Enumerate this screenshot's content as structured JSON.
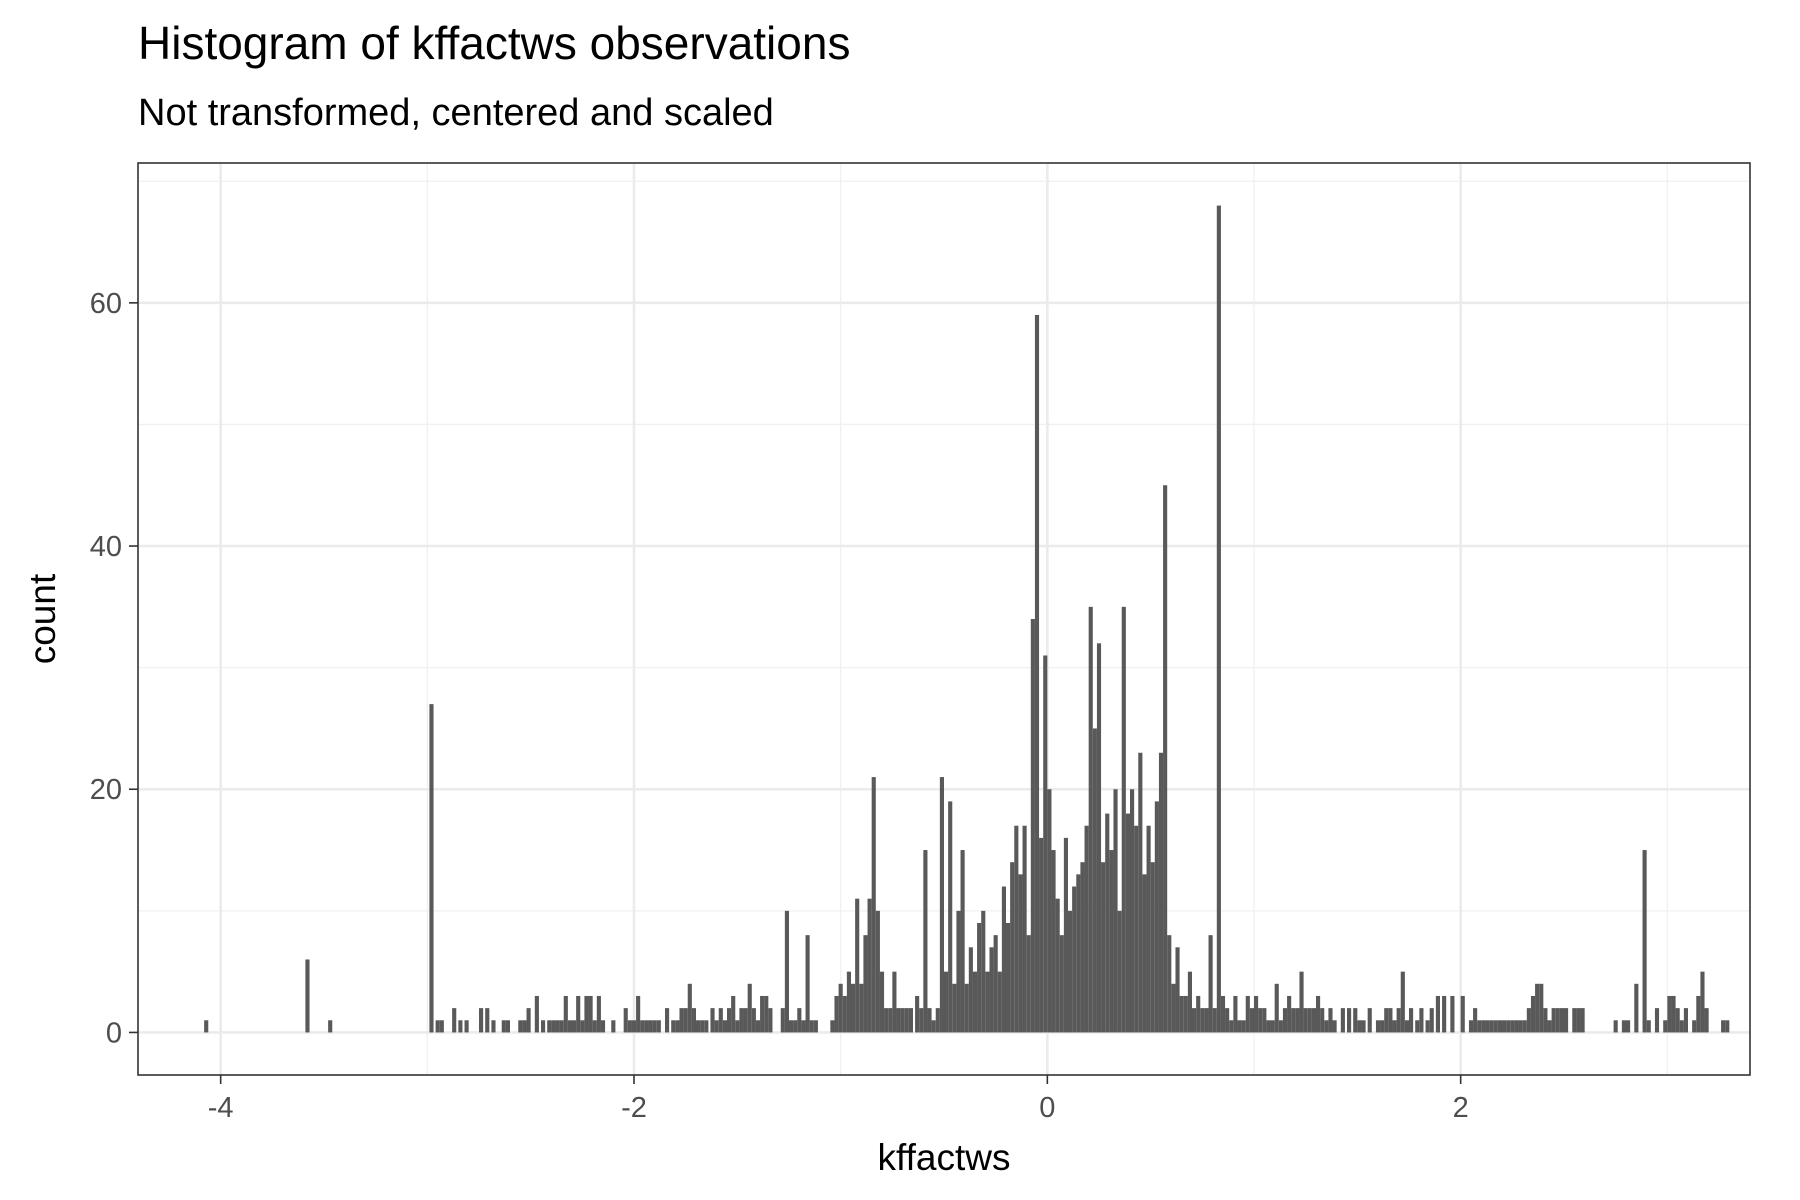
{
  "chart_data": {
    "type": "bar",
    "title": "Histogram of kffactws observations",
    "subtitle": "Not transformed, centered and scaled",
    "xlabel": "kffactws",
    "ylabel": "count",
    "xlim": [
      -4.4,
      3.4
    ],
    "ylim": [
      -3.5,
      71.5
    ],
    "x_ticks": [
      -4,
      -2,
      0,
      2
    ],
    "x_tick_labels": [
      "-4",
      "-2",
      "0",
      "2"
    ],
    "y_ticks": [
      0,
      20,
      40,
      60
    ],
    "y_tick_labels": [
      "0",
      "20",
      "40",
      "60"
    ],
    "grid": true,
    "bar_color": "#595959",
    "bins": [
      [
        -4.07,
        1
      ],
      [
        -3.58,
        6
      ],
      [
        -3.47,
        1
      ],
      [
        -2.98,
        27
      ],
      [
        -2.95,
        1
      ],
      [
        -2.93,
        1
      ],
      [
        -2.87,
        2
      ],
      [
        -2.84,
        1
      ],
      [
        -2.81,
        1
      ],
      [
        -2.74,
        2
      ],
      [
        -2.71,
        2
      ],
      [
        -2.68,
        1
      ],
      [
        -2.63,
        1
      ],
      [
        -2.61,
        1
      ],
      [
        -2.55,
        1
      ],
      [
        -2.53,
        1
      ],
      [
        -2.51,
        2
      ],
      [
        -2.47,
        3
      ],
      [
        -2.44,
        1
      ],
      [
        -2.41,
        1
      ],
      [
        -2.39,
        1
      ],
      [
        -2.37,
        1
      ],
      [
        -2.35,
        1
      ],
      [
        -2.33,
        3
      ],
      [
        -2.31,
        1
      ],
      [
        -2.29,
        1
      ],
      [
        -2.27,
        3
      ],
      [
        -2.25,
        1
      ],
      [
        -2.23,
        3
      ],
      [
        -2.21,
        3
      ],
      [
        -2.19,
        1
      ],
      [
        -2.17,
        3
      ],
      [
        -2.15,
        1
      ],
      [
        -2.1,
        1
      ],
      [
        -2.04,
        2
      ],
      [
        -2.02,
        1
      ],
      [
        -2.0,
        1
      ],
      [
        -1.98,
        3
      ],
      [
        -1.96,
        1
      ],
      [
        -1.94,
        1
      ],
      [
        -1.92,
        1
      ],
      [
        -1.9,
        1
      ],
      [
        -1.88,
        1
      ],
      [
        -1.84,
        2
      ],
      [
        -1.81,
        1
      ],
      [
        -1.79,
        1
      ],
      [
        -1.77,
        2
      ],
      [
        -1.75,
        2
      ],
      [
        -1.73,
        4
      ],
      [
        -1.71,
        2
      ],
      [
        -1.69,
        1
      ],
      [
        -1.67,
        1
      ],
      [
        -1.65,
        1
      ],
      [
        -1.62,
        2
      ],
      [
        -1.6,
        1
      ],
      [
        -1.58,
        2
      ],
      [
        -1.56,
        1
      ],
      [
        -1.54,
        2
      ],
      [
        -1.52,
        3
      ],
      [
        -1.5,
        1
      ],
      [
        -1.48,
        2
      ],
      [
        -1.46,
        2
      ],
      [
        -1.44,
        4
      ],
      [
        -1.42,
        2
      ],
      [
        -1.4,
        1
      ],
      [
        -1.38,
        3
      ],
      [
        -1.36,
        3
      ],
      [
        -1.34,
        2
      ],
      [
        -1.28,
        2
      ],
      [
        -1.26,
        10
      ],
      [
        -1.24,
        1
      ],
      [
        -1.22,
        1
      ],
      [
        -1.2,
        2
      ],
      [
        -1.18,
        1
      ],
      [
        -1.16,
        8
      ],
      [
        -1.14,
        1
      ],
      [
        -1.12,
        1
      ],
      [
        -1.04,
        1
      ],
      [
        -1.02,
        3
      ],
      [
        -1.0,
        4
      ],
      [
        -0.98,
        3
      ],
      [
        -0.96,
        5
      ],
      [
        -0.94,
        4
      ],
      [
        -0.92,
        11
      ],
      [
        -0.9,
        4
      ],
      [
        -0.88,
        8
      ],
      [
        -0.86,
        11
      ],
      [
        -0.84,
        21
      ],
      [
        -0.82,
        10
      ],
      [
        -0.8,
        5
      ],
      [
        -0.78,
        2
      ],
      [
        -0.76,
        2
      ],
      [
        -0.74,
        5
      ],
      [
        -0.72,
        2
      ],
      [
        -0.7,
        2
      ],
      [
        -0.68,
        2
      ],
      [
        -0.66,
        2
      ],
      [
        -0.63,
        3
      ],
      [
        -0.61,
        2
      ],
      [
        -0.59,
        15
      ],
      [
        -0.57,
        2
      ],
      [
        -0.55,
        1
      ],
      [
        -0.53,
        2
      ],
      [
        -0.51,
        21
      ],
      [
        -0.49,
        5
      ],
      [
        -0.47,
        19
      ],
      [
        -0.45,
        4
      ],
      [
        -0.43,
        10
      ],
      [
        -0.41,
        15
      ],
      [
        -0.39,
        4
      ],
      [
        -0.37,
        7
      ],
      [
        -0.35,
        5
      ],
      [
        -0.33,
        9
      ],
      [
        -0.31,
        10
      ],
      [
        -0.29,
        5
      ],
      [
        -0.27,
        7
      ],
      [
        -0.25,
        8
      ],
      [
        -0.23,
        5
      ],
      [
        -0.21,
        12
      ],
      [
        -0.19,
        9
      ],
      [
        -0.17,
        14
      ],
      [
        -0.15,
        17
      ],
      [
        -0.13,
        13
      ],
      [
        -0.11,
        17
      ],
      [
        -0.09,
        8
      ],
      [
        -0.07,
        34
      ],
      [
        -0.05,
        59
      ],
      [
        -0.03,
        16
      ],
      [
        -0.01,
        31
      ],
      [
        0.01,
        20
      ],
      [
        0.03,
        15
      ],
      [
        0.05,
        11
      ],
      [
        0.07,
        8
      ],
      [
        0.09,
        16
      ],
      [
        0.11,
        10
      ],
      [
        0.13,
        12
      ],
      [
        0.15,
        13
      ],
      [
        0.17,
        14
      ],
      [
        0.19,
        17
      ],
      [
        0.21,
        35
      ],
      [
        0.23,
        25
      ],
      [
        0.25,
        32
      ],
      [
        0.27,
        14
      ],
      [
        0.29,
        18
      ],
      [
        0.31,
        15
      ],
      [
        0.33,
        20
      ],
      [
        0.35,
        10
      ],
      [
        0.37,
        35
      ],
      [
        0.39,
        18
      ],
      [
        0.41,
        20
      ],
      [
        0.43,
        17
      ],
      [
        0.45,
        23
      ],
      [
        0.47,
        13
      ],
      [
        0.49,
        17
      ],
      [
        0.51,
        14
      ],
      [
        0.53,
        19
      ],
      [
        0.55,
        23
      ],
      [
        0.57,
        45
      ],
      [
        0.59,
        8
      ],
      [
        0.61,
        4
      ],
      [
        0.63,
        7
      ],
      [
        0.65,
        3
      ],
      [
        0.67,
        3
      ],
      [
        0.69,
        5
      ],
      [
        0.71,
        2
      ],
      [
        0.73,
        3
      ],
      [
        0.75,
        2
      ],
      [
        0.77,
        2
      ],
      [
        0.79,
        8
      ],
      [
        0.81,
        2
      ],
      [
        0.83,
        68
      ],
      [
        0.85,
        3
      ],
      [
        0.87,
        2
      ],
      [
        0.89,
        1
      ],
      [
        0.91,
        3
      ],
      [
        0.93,
        1
      ],
      [
        0.95,
        1
      ],
      [
        0.97,
        3
      ],
      [
        0.99,
        2
      ],
      [
        1.01,
        3
      ],
      [
        1.03,
        2
      ],
      [
        1.05,
        2
      ],
      [
        1.07,
        1
      ],
      [
        1.09,
        1
      ],
      [
        1.11,
        4
      ],
      [
        1.13,
        1
      ],
      [
        1.15,
        2
      ],
      [
        1.17,
        3
      ],
      [
        1.19,
        2
      ],
      [
        1.21,
        2
      ],
      [
        1.23,
        5
      ],
      [
        1.25,
        2
      ],
      [
        1.27,
        2
      ],
      [
        1.29,
        2
      ],
      [
        1.31,
        3
      ],
      [
        1.33,
        2
      ],
      [
        1.35,
        1
      ],
      [
        1.37,
        2
      ],
      [
        1.39,
        1
      ],
      [
        1.43,
        2
      ],
      [
        1.46,
        2
      ],
      [
        1.49,
        2
      ],
      [
        1.51,
        1
      ],
      [
        1.53,
        1
      ],
      [
        1.56,
        2
      ],
      [
        1.6,
        1
      ],
      [
        1.62,
        1
      ],
      [
        1.64,
        2
      ],
      [
        1.66,
        2
      ],
      [
        1.68,
        1
      ],
      [
        1.7,
        2
      ],
      [
        1.72,
        5
      ],
      [
        1.74,
        1
      ],
      [
        1.76,
        2
      ],
      [
        1.79,
        1
      ],
      [
        1.81,
        2
      ],
      [
        1.84,
        1
      ],
      [
        1.86,
        2
      ],
      [
        1.89,
        3
      ],
      [
        1.92,
        3
      ],
      [
        1.96,
        3
      ],
      [
        2.01,
        3
      ],
      [
        2.05,
        1
      ],
      [
        2.07,
        2
      ],
      [
        2.09,
        1
      ],
      [
        2.11,
        1
      ],
      [
        2.13,
        1
      ],
      [
        2.15,
        1
      ],
      [
        2.17,
        1
      ],
      [
        2.19,
        1
      ],
      [
        2.21,
        1
      ],
      [
        2.23,
        1
      ],
      [
        2.25,
        1
      ],
      [
        2.27,
        1
      ],
      [
        2.29,
        1
      ],
      [
        2.31,
        1
      ],
      [
        2.33,
        2
      ],
      [
        2.35,
        3
      ],
      [
        2.37,
        4
      ],
      [
        2.39,
        4
      ],
      [
        2.41,
        2
      ],
      [
        2.43,
        1
      ],
      [
        2.45,
        2
      ],
      [
        2.47,
        2
      ],
      [
        2.49,
        2
      ],
      [
        2.51,
        2
      ],
      [
        2.55,
        2
      ],
      [
        2.57,
        2
      ],
      [
        2.59,
        2
      ],
      [
        2.75,
        1
      ],
      [
        2.79,
        1
      ],
      [
        2.81,
        1
      ],
      [
        2.85,
        4
      ],
      [
        2.89,
        15
      ],
      [
        2.91,
        1
      ],
      [
        2.95,
        2
      ],
      [
        2.99,
        1
      ],
      [
        3.01,
        3
      ],
      [
        3.03,
        3
      ],
      [
        3.05,
        2
      ],
      [
        3.07,
        1
      ],
      [
        3.09,
        2
      ],
      [
        3.13,
        1
      ],
      [
        3.15,
        3
      ],
      [
        3.17,
        5
      ],
      [
        3.19,
        2
      ],
      [
        3.27,
        1
      ],
      [
        3.29,
        1
      ]
    ]
  }
}
